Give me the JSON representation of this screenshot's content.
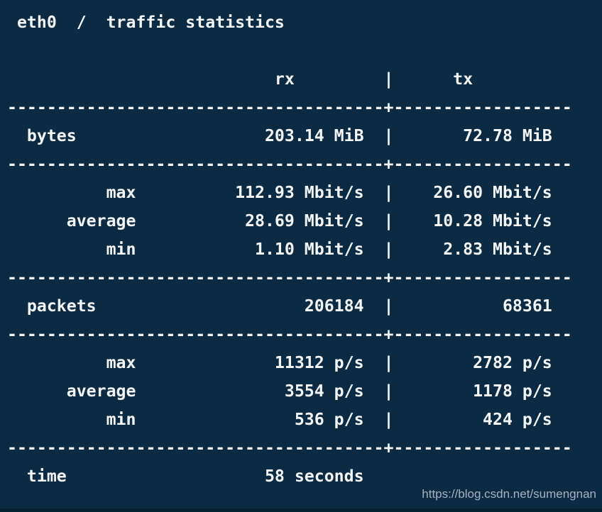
{
  "window": {
    "title": "eth0  /  traffic statistics",
    "watermark": "https://blog.csdn.net/sumengnan"
  },
  "table": {
    "header": {
      "rx": "rx",
      "tx": "tx"
    },
    "divider": "|",
    "separator": "--------------------------------------+------------------",
    "rows": {
      "bytes": {
        "label": "bytes",
        "rx": "203.14 MiB",
        "tx": "72.78 MiB"
      },
      "rate_max": {
        "label": "max",
        "rx": "112.93 Mbit/s",
        "tx": "26.60 Mbit/s"
      },
      "rate_average": {
        "label": "average",
        "rx": "28.69 Mbit/s",
        "tx": "10.28 Mbit/s"
      },
      "rate_min": {
        "label": "min",
        "rx": "1.10 Mbit/s",
        "tx": "2.83 Mbit/s"
      },
      "packets": {
        "label": "packets",
        "rx": "206184",
        "tx": "68361"
      },
      "pps_max": {
        "label": "max",
        "rx": "11312 p/s",
        "tx": "2782 p/s"
      },
      "pps_average": {
        "label": "average",
        "rx": "3554 p/s",
        "tx": "1178 p/s"
      },
      "pps_min": {
        "label": "min",
        "rx": "536 p/s",
        "tx": "424 p/s"
      },
      "time": {
        "label": "time",
        "value": "58 seconds"
      }
    }
  }
}
